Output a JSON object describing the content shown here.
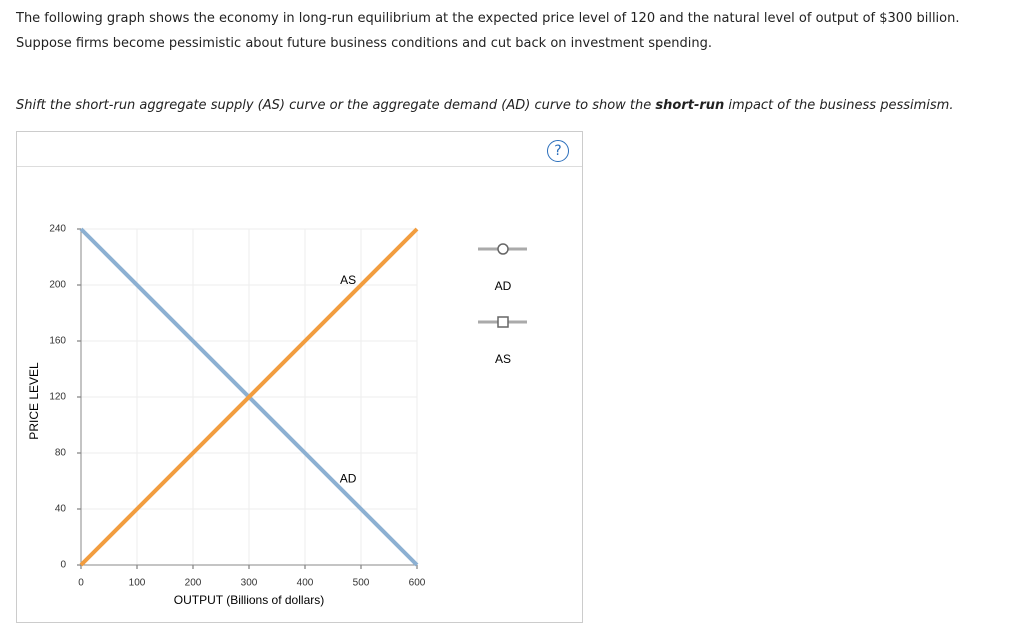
{
  "instructions": [
    "The following graph shows the economy in long-run equilibrium at the expected price level of 120 and the natural level of output of $300 billion.",
    "Suppose firms become pessimistic about future business conditions and cut back on investment spending."
  ],
  "task": {
    "before": "Shift the short-run aggregate supply (AS) curve or the aggregate demand (AD) curve to show the ",
    "bold": "short-run",
    "after": " impact of the business pessimism."
  },
  "help": "?",
  "chart_data": {
    "type": "line",
    "xlabel": "OUTPUT (Billions of dollars)",
    "ylabel": "PRICE LEVEL",
    "series": [
      {
        "name": "AD",
        "color": "#8cb0d2",
        "x": [
          0,
          600
        ],
        "values": [
          240,
          0
        ]
      },
      {
        "name": "AS",
        "color": "#f29d3f",
        "x": [
          0,
          600
        ],
        "values": [
          0,
          240
        ]
      }
    ],
    "xlim": [
      0,
      600
    ],
    "ylim": [
      0,
      240
    ],
    "xticks": [
      0,
      100,
      200,
      300,
      400,
      500,
      600
    ],
    "yticks": [
      0,
      40,
      80,
      120,
      160,
      200,
      240
    ],
    "grid": true
  }
}
